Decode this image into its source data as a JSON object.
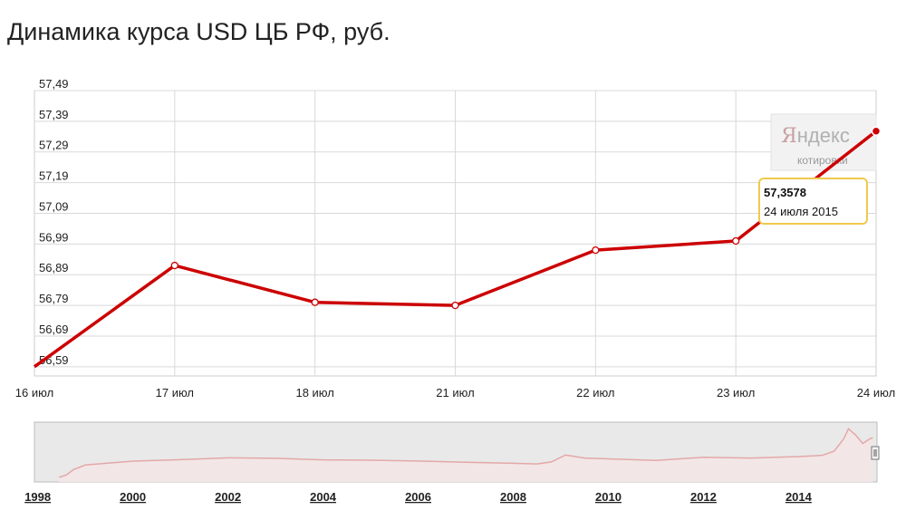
{
  "title": "Динамика курса USD ЦБ РФ, руб.",
  "watermark": {
    "brand_first": "Я",
    "brand_rest": "ндекс",
    "sub": "котировки"
  },
  "tooltip": {
    "value": "57,3578",
    "date": "24 июля 2015"
  },
  "colors": {
    "line": "#cc0000",
    "grid": "#d9d9d9",
    "navigator_bg": "#e9e9e9",
    "navigator_line": "#e3a8a8"
  },
  "chart_data": {
    "type": "line",
    "title": "Динамика курса USD ЦБ РФ, руб.",
    "categories": [
      "16 июл",
      "17 июл",
      "18 июл",
      "21 июл",
      "22 июл",
      "23 июл",
      "24 июл"
    ],
    "series": [
      {
        "values": [
          56.59,
          56.92,
          56.8,
          56.79,
          56.97,
          57.0,
          57.3578
        ]
      }
    ],
    "yticks": [
      "57,49",
      "57,39",
      "57,29",
      "57,19",
      "57,09",
      "56,99",
      "56,89",
      "56,79",
      "56,69",
      "56,59"
    ],
    "ylim": [
      56.56,
      57.49
    ],
    "grid": true
  },
  "navigator": {
    "year_labels": [
      "1998",
      "2000",
      "2002",
      "2004",
      "2006",
      "2008",
      "2010",
      "2012",
      "2014"
    ],
    "series_rub_per_usd": [
      [
        1998.45,
        6.0
      ],
      [
        1998.6,
        9.0
      ],
      [
        1998.75,
        16.0
      ],
      [
        1999.0,
        22.0
      ],
      [
        1999.5,
        24.5
      ],
      [
        2000.0,
        27.0
      ],
      [
        2001.0,
        29.0
      ],
      [
        2002.0,
        31.3
      ],
      [
        2003.0,
        30.7
      ],
      [
        2004.0,
        28.7
      ],
      [
        2005.0,
        28.3
      ],
      [
        2006.0,
        27.2
      ],
      [
        2007.0,
        25.6
      ],
      [
        2008.0,
        24.3
      ],
      [
        2008.5,
        23.4
      ],
      [
        2008.8,
        26.0
      ],
      [
        2009.1,
        35.0
      ],
      [
        2009.5,
        31.0
      ],
      [
        2010.0,
        30.0
      ],
      [
        2011.0,
        28.0
      ],
      [
        2012.0,
        32.0
      ],
      [
        2013.0,
        31.0
      ],
      [
        2014.0,
        33.0
      ],
      [
        2014.5,
        34.5
      ],
      [
        2014.75,
        40.0
      ],
      [
        2014.95,
        56.0
      ],
      [
        2015.05,
        69.0
      ],
      [
        2015.2,
        61.0
      ],
      [
        2015.35,
        50.0
      ],
      [
        2015.5,
        56.0
      ],
      [
        2015.56,
        57.36
      ]
    ]
  }
}
